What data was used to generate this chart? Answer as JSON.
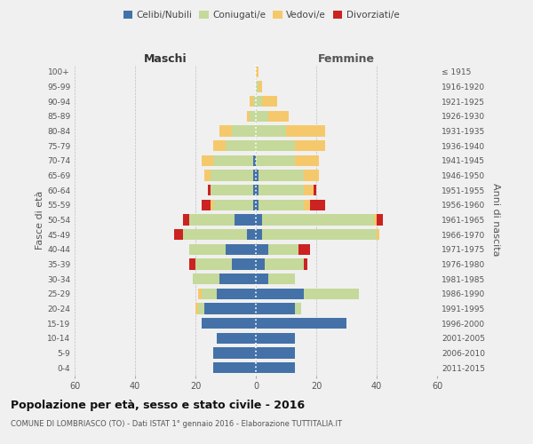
{
  "age_groups": [
    "0-4",
    "5-9",
    "10-14",
    "15-19",
    "20-24",
    "25-29",
    "30-34",
    "35-39",
    "40-44",
    "45-49",
    "50-54",
    "55-59",
    "60-64",
    "65-69",
    "70-74",
    "75-79",
    "80-84",
    "85-89",
    "90-94",
    "95-99",
    "100+"
  ],
  "birth_years": [
    "2011-2015",
    "2006-2010",
    "2001-2005",
    "1996-2000",
    "1991-1995",
    "1986-1990",
    "1981-1985",
    "1976-1980",
    "1971-1975",
    "1966-1970",
    "1961-1965",
    "1956-1960",
    "1951-1955",
    "1946-1950",
    "1941-1945",
    "1936-1940",
    "1931-1935",
    "1926-1930",
    "1921-1925",
    "1916-1920",
    "≤ 1915"
  ],
  "males": {
    "celibi": [
      14,
      14,
      13,
      18,
      17,
      13,
      12,
      8,
      10,
      3,
      7,
      1,
      1,
      1,
      1,
      0,
      0,
      0,
      0,
      0,
      0
    ],
    "coniugati": [
      0,
      0,
      0,
      0,
      2,
      5,
      9,
      12,
      12,
      21,
      15,
      13,
      14,
      14,
      13,
      10,
      8,
      2,
      1,
      0,
      0
    ],
    "vedovi": [
      0,
      0,
      0,
      0,
      1,
      1,
      0,
      0,
      0,
      0,
      0,
      1,
      0,
      2,
      4,
      4,
      4,
      1,
      1,
      0,
      0
    ],
    "divorziati": [
      0,
      0,
      0,
      0,
      0,
      0,
      0,
      2,
      0,
      3,
      2,
      3,
      1,
      0,
      0,
      0,
      0,
      0,
      0,
      0,
      0
    ]
  },
  "females": {
    "nubili": [
      13,
      13,
      13,
      30,
      13,
      16,
      4,
      3,
      4,
      2,
      2,
      1,
      1,
      1,
      0,
      0,
      0,
      0,
      0,
      0,
      0
    ],
    "coniugate": [
      0,
      0,
      0,
      0,
      2,
      18,
      9,
      13,
      10,
      38,
      37,
      15,
      15,
      15,
      13,
      13,
      10,
      4,
      2,
      1,
      0
    ],
    "vedove": [
      0,
      0,
      0,
      0,
      0,
      0,
      0,
      0,
      0,
      1,
      1,
      2,
      3,
      5,
      8,
      10,
      13,
      7,
      5,
      1,
      1
    ],
    "divorziate": [
      0,
      0,
      0,
      0,
      0,
      0,
      0,
      1,
      4,
      0,
      2,
      5,
      1,
      0,
      0,
      0,
      0,
      0,
      0,
      0,
      0
    ]
  },
  "colors": {
    "celibi": "#4472a8",
    "coniugati": "#c5d99a",
    "vedovi": "#f5c96b",
    "divorziati": "#cc2222"
  },
  "xlim": 60,
  "title": "Popolazione per età, sesso e stato civile - 2016",
  "subtitle": "COMUNE DI LOMBRIASCO (TO) - Dati ISTAT 1° gennaio 2016 - Elaborazione TUTTITALIA.IT",
  "ylabel_left": "Fasce di età",
  "ylabel_right": "Anni di nascita",
  "xlabel_left": "Maschi",
  "xlabel_right": "Femmine",
  "background_color": "#f0f0f0",
  "grid_color": "#cccccc"
}
